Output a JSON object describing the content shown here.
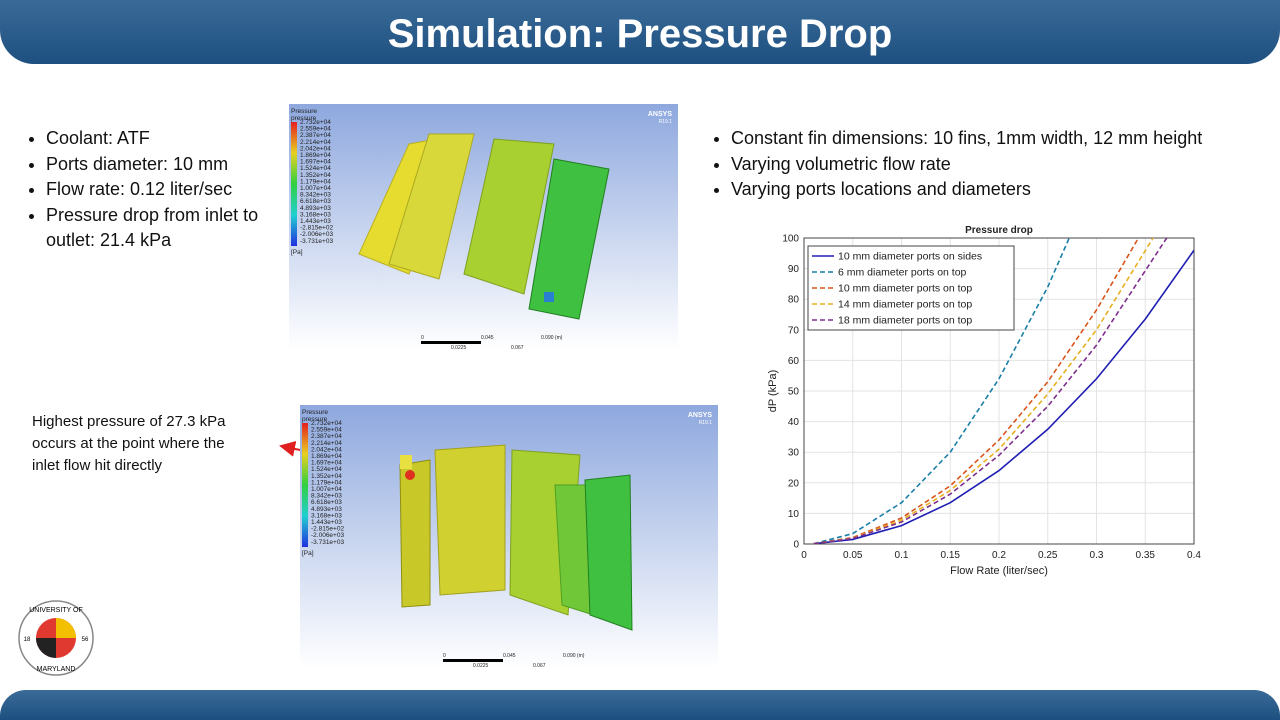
{
  "header": {
    "title": "Simulation: Pressure Drop"
  },
  "left_bullets": [
    "Coolant: ATF",
    "Ports diameter: 10 mm",
    "Flow rate: 0.12 liter/sec",
    "Pressure drop from inlet to outlet: 21.4 kPa"
  ],
  "right_bullets": [
    "Constant fin dimensions: 10 fins, 1mm width, 12 mm height",
    "Varying volumetric flow rate",
    "Varying ports locations and diameters"
  ],
  "annotation": [
    "Highest pressure of 27.3 kPa",
    "occurs at the point where the",
    "inlet flow hit directly"
  ],
  "simulation_legend": {
    "title": "Pressure",
    "variable": "pressure",
    "levels": [
      "2.732e+04",
      "2.559e+04",
      "2.387e+04",
      "2.214e+04",
      "2.042e+04",
      "1.869e+04",
      "1.697e+04",
      "1.524e+04",
      "1.352e+04",
      "1.179e+04",
      "1.007e+04",
      "8.342e+03",
      "6.618e+03",
      "4.893e+03",
      "3.168e+03",
      "1.443e+03",
      "-2.815e+02",
      "-2.006e+03",
      "-3.731e+03"
    ],
    "unit": "[Pa]",
    "brand": "ANSYS",
    "version": "R19.1",
    "scale_labels": [
      "0",
      "0.045",
      "0.090 (m)"
    ],
    "scale_sublabels": [
      "0.0225",
      "0.067"
    ]
  },
  "logo": {
    "top": "UNIVERSITY OF",
    "bottom": "MARYLAND",
    "year_left": "18",
    "year_right": "56"
  },
  "chart_data": {
    "type": "line",
    "title": "Pressure drop",
    "x_label": "Flow Rate (liter/sec)",
    "y_label": "dP (kPa)",
    "xlim": [
      0,
      0.4
    ],
    "xticks": [
      0,
      0.05,
      0.1,
      0.15,
      0.2,
      0.25,
      0.3,
      0.35,
      0.4
    ],
    "ylim": [
      0,
      100
    ],
    "yticks": [
      0,
      10,
      20,
      30,
      40,
      50,
      60,
      70,
      80,
      90,
      100
    ],
    "grid": true,
    "legend_position": "upper-left",
    "series": [
      {
        "name": "10 mm diameter ports on sides",
        "color": "#1f1fb4",
        "line_style": "solid",
        "x": [
          0.01,
          0.05,
          0.1,
          0.15,
          0.2,
          0.25,
          0.3,
          0.35,
          0.4
        ],
        "values": [
          0.1,
          1.5,
          6,
          13.5,
          24,
          37.5,
          54,
          73.5,
          96
        ]
      },
      {
        "name": "6 mm diameter ports on top",
        "color": "#1a7fa8",
        "line_style": "dashed",
        "x": [
          0.01,
          0.05,
          0.1,
          0.15,
          0.2,
          0.25,
          0.272
        ],
        "values": [
          0.1,
          3.4,
          13.5,
          30,
          54,
          84,
          100
        ]
      },
      {
        "name": "10 mm diameter ports on top",
        "color": "#d9541a",
        "line_style": "dashed",
        "x": [
          0.01,
          0.05,
          0.1,
          0.15,
          0.2,
          0.25,
          0.3,
          0.343
        ],
        "values": [
          0.1,
          2.1,
          8.5,
          19,
          34,
          53,
          76.5,
          100
        ]
      },
      {
        "name": "14 mm diameter ports on top",
        "color": "#e6b020",
        "line_style": "dashed",
        "x": [
          0.01,
          0.05,
          0.1,
          0.15,
          0.2,
          0.25,
          0.3,
          0.358
        ],
        "values": [
          0.1,
          1.9,
          7.8,
          17.5,
          31,
          49,
          70,
          100
        ]
      },
      {
        "name": "18 mm diameter ports on top",
        "color": "#7e2f8e",
        "line_style": "dashed",
        "x": [
          0.01,
          0.05,
          0.1,
          0.15,
          0.2,
          0.25,
          0.3,
          0.372
        ],
        "values": [
          0.1,
          1.8,
          7.2,
          16.3,
          29,
          45,
          65,
          100
        ]
      }
    ]
  }
}
